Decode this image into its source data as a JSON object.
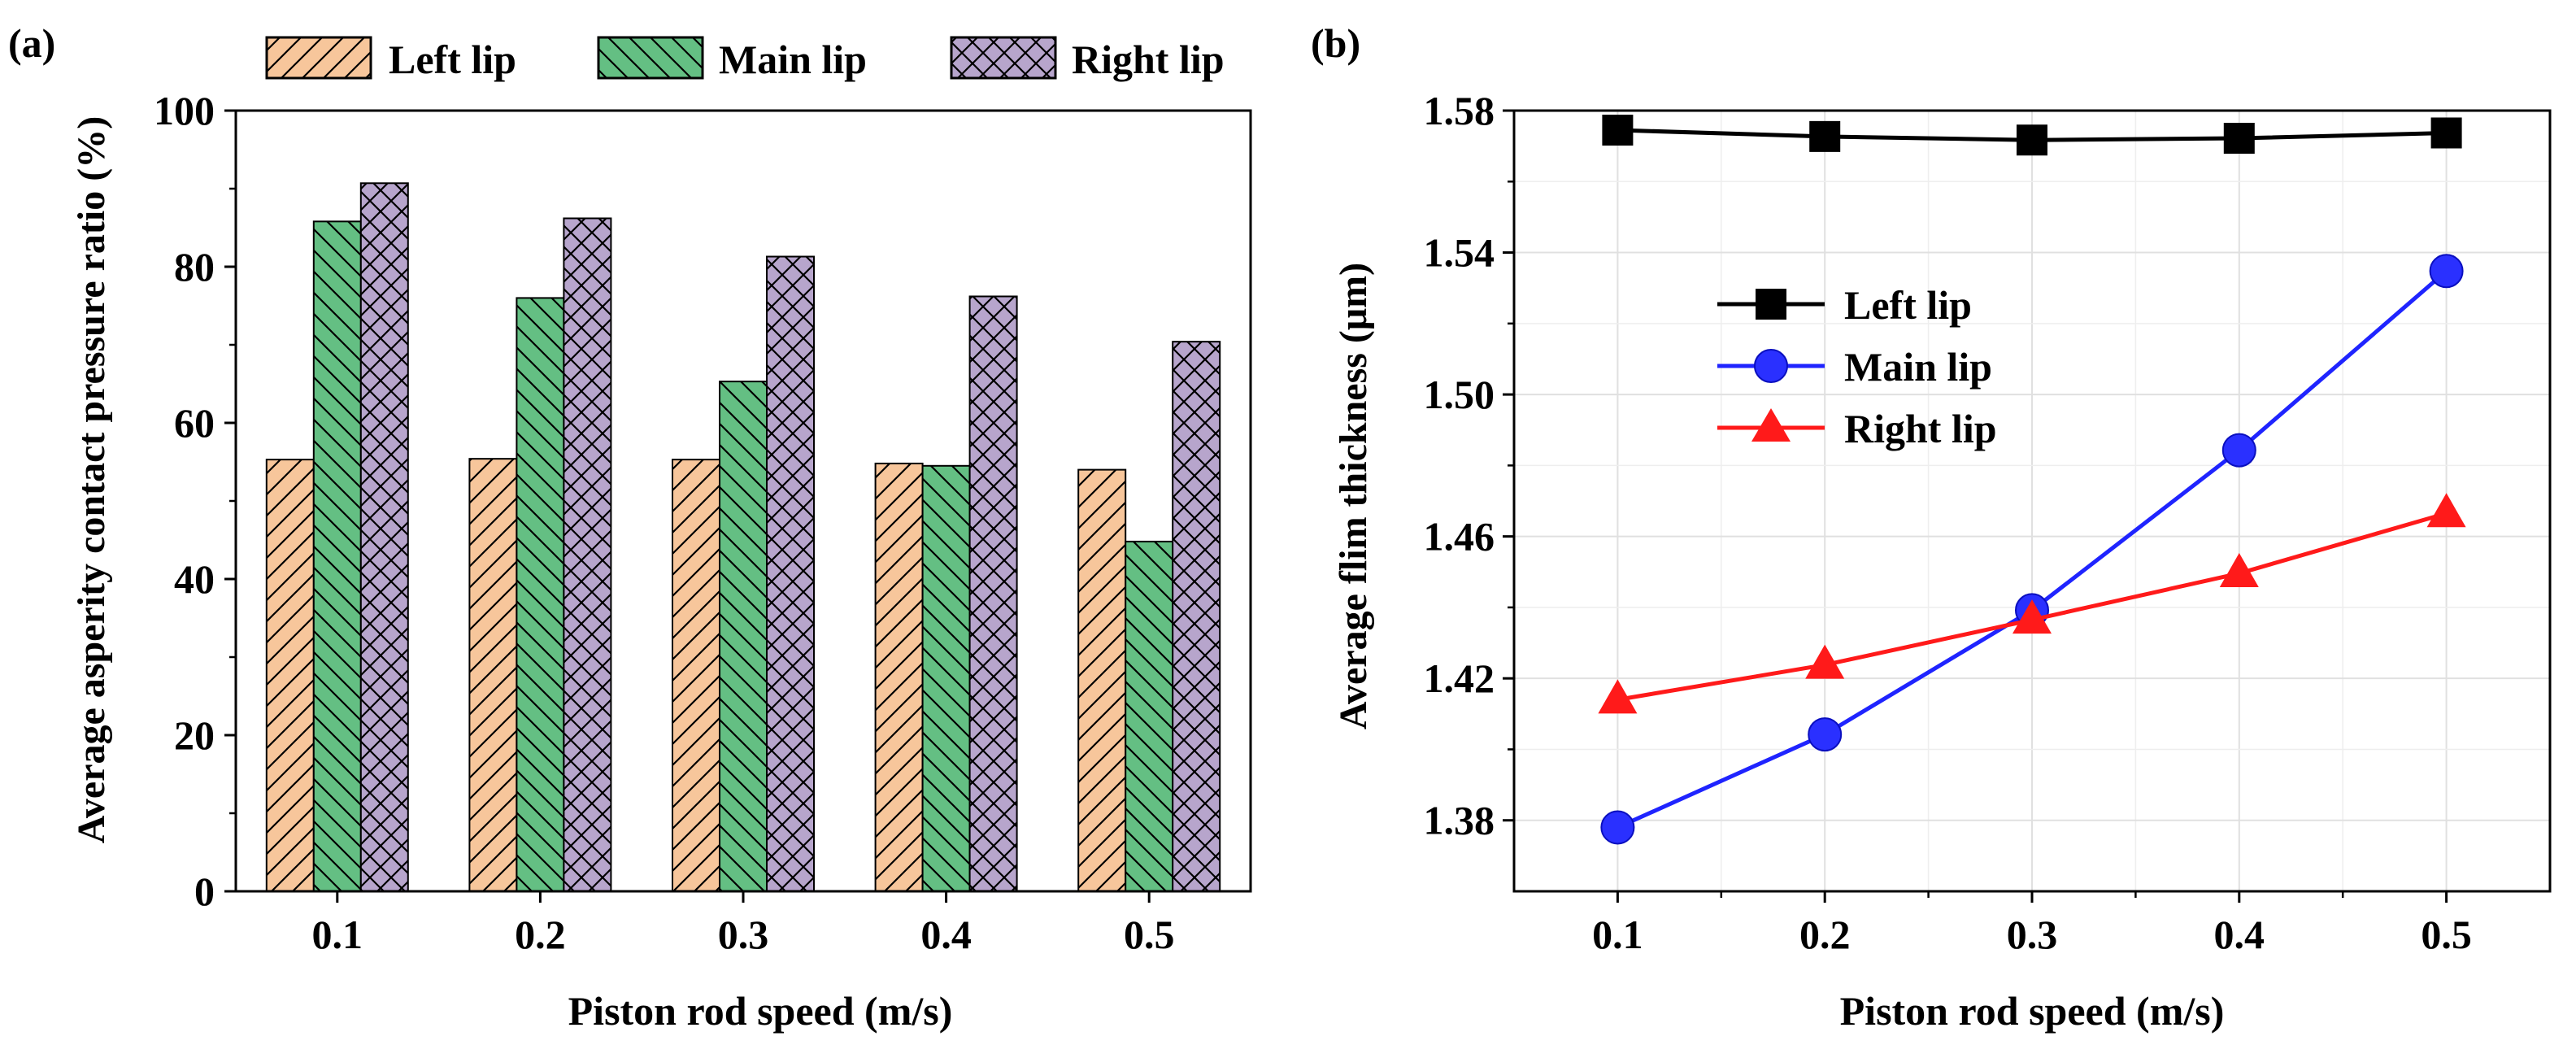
{
  "chart_data": [
    {
      "panel_label": "(a)",
      "type": "bar",
      "categories": [
        "0.1",
        "0.2",
        "0.3",
        "0.4",
        "0.5"
      ],
      "series": [
        {
          "name": "Left lip",
          "values": [
            55.3,
            55.4,
            55.3,
            54.8,
            54.0
          ],
          "color": "#f7c69b"
        },
        {
          "name": "Main lip",
          "values": [
            85.8,
            76.0,
            65.3,
            54.5,
            44.8
          ],
          "color": "#64bf83"
        },
        {
          "name": "Right lip",
          "values": [
            90.7,
            86.2,
            81.3,
            76.2,
            70.4
          ],
          "color": "#b7a5cc"
        }
      ],
      "xlabel": "Piston rod speed (m/s)",
      "ylabel": "Average asperity contact pressure ratio (%)",
      "ylim": [
        0,
        100
      ],
      "yticks": [
        "0",
        "20",
        "40",
        "60",
        "80",
        "100"
      ],
      "legend": "top"
    },
    {
      "panel_label": "(b)",
      "type": "line",
      "x": [
        0.1,
        0.2,
        0.3,
        0.4,
        0.5
      ],
      "xticks": [
        "0.1",
        "0.2",
        "0.3",
        "0.4",
        "0.5"
      ],
      "series": [
        {
          "name": "Left lip",
          "values": [
            1.5745,
            1.5727,
            1.5717,
            1.5722,
            1.5737
          ],
          "color": "#000000",
          "marker": "square"
        },
        {
          "name": "Main lip",
          "values": [
            1.378,
            1.4042,
            1.4392,
            1.4843,
            1.5348
          ],
          "color": "#1f24ff",
          "marker": "circle"
        },
        {
          "name": "Right lip",
          "values": [
            1.414,
            1.4238,
            1.4365,
            1.4496,
            1.4665
          ],
          "color": "#ff1a1a",
          "marker": "triangle"
        }
      ],
      "xlabel": "Piston rod speed (m/s)",
      "ylabel": "Average flim thickness (μm)",
      "xlim": [
        0.05,
        0.55
      ],
      "ylim": [
        1.36,
        1.58
      ],
      "yticks": [
        "1.38",
        "1.42",
        "1.46",
        "1.50",
        "1.54",
        "1.58"
      ],
      "grid": true,
      "legend": "upper-left"
    }
  ]
}
